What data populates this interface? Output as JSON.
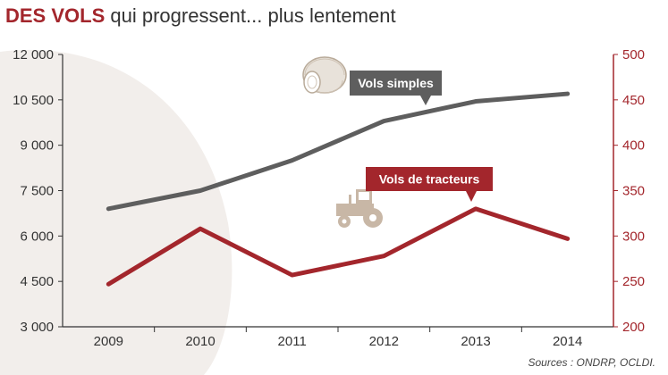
{
  "title": {
    "bold": "DES VOLS",
    "rest": "qui progressent... plus lentement"
  },
  "source": "Sources : ONDRP, OCLDI.",
  "colors": {
    "accent_red": "#a3262c",
    "series_gray": "#5e5e5e",
    "axis_dark": "#333333",
    "background_shape": "#f2eeeb",
    "icon_beige": "#c8b7a6"
  },
  "icons": [
    "coin-roll-icon",
    "tractor-icon"
  ],
  "chart_data": {
    "type": "line",
    "x": [
      "2009",
      "2010",
      "2011",
      "2012",
      "2013",
      "2014"
    ],
    "left_axis": {
      "ylim": [
        3000,
        12000
      ],
      "ticks": [
        "3 000",
        "4 500",
        "6 000",
        "7 500",
        "9 000",
        "10 500",
        "12 000"
      ],
      "tick_values": [
        3000,
        4500,
        6000,
        7500,
        9000,
        10500,
        12000
      ]
    },
    "right_axis": {
      "ylim": [
        200,
        500
      ],
      "ticks": [
        "200",
        "250",
        "300",
        "350",
        "400",
        "450",
        "500"
      ],
      "tick_values": [
        200,
        250,
        300,
        350,
        400,
        450,
        500
      ],
      "color": "#a3262c"
    },
    "grid": false,
    "series": [
      {
        "name": "Vols simples",
        "axis": "left",
        "color": "#5e5e5e",
        "values": [
          6900,
          7500,
          8500,
          9800,
          10450,
          10700
        ]
      },
      {
        "name": "Vols de tracteurs",
        "axis": "right",
        "color": "#a3262c",
        "values": [
          247,
          308,
          257,
          278,
          330,
          297
        ]
      }
    ]
  }
}
